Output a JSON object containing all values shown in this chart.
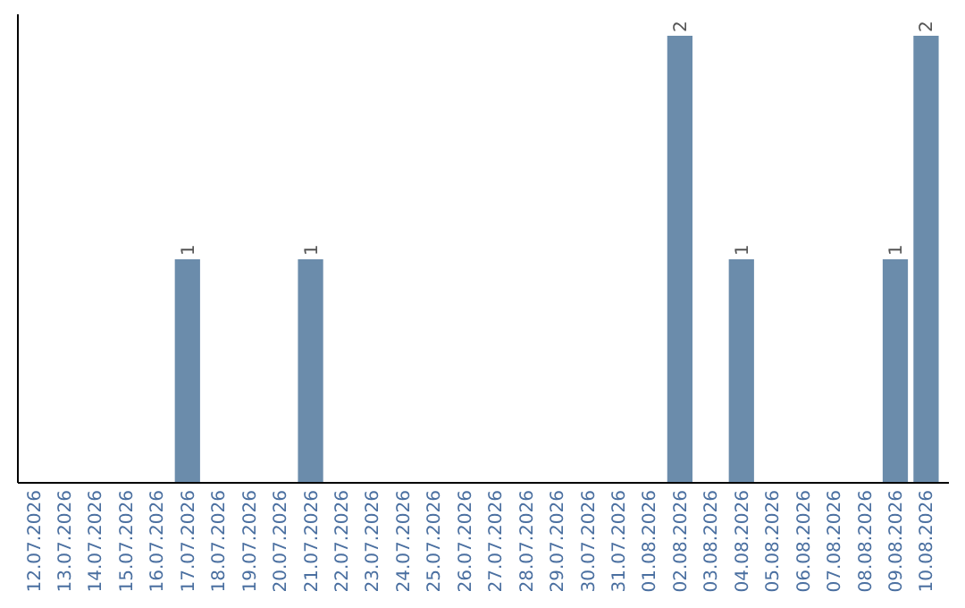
{
  "chart_data": {
    "type": "bar",
    "categories": [
      "12.07.2026",
      "13.07.2026",
      "14.07.2026",
      "15.07.2026",
      "16.07.2026",
      "17.07.2026",
      "18.07.2026",
      "19.07.2026",
      "20.07.2026",
      "21.07.2026",
      "22.07.2026",
      "23.07.2026",
      "24.07.2026",
      "25.07.2026",
      "26.07.2026",
      "27.07.2026",
      "28.07.2026",
      "29.07.2026",
      "30.07.2026",
      "31.07.2026",
      "01.08.2026",
      "02.08.2026",
      "03.08.2026",
      "04.08.2026",
      "05.08.2026",
      "06.08.2026",
      "07.08.2026",
      "08.08.2026",
      "09.08.2026",
      "10.08.2026"
    ],
    "values": [
      0,
      0,
      0,
      0,
      0,
      1,
      0,
      0,
      0,
      1,
      0,
      0,
      0,
      0,
      0,
      0,
      0,
      0,
      0,
      0,
      0,
      2,
      0,
      1,
      0,
      0,
      0,
      0,
      1,
      2
    ],
    "value_labels": [
      null,
      null,
      null,
      null,
      null,
      "1",
      null,
      null,
      null,
      "1",
      null,
      null,
      null,
      null,
      null,
      null,
      null,
      null,
      null,
      null,
      null,
      "2",
      null,
      "1",
      null,
      null,
      null,
      null,
      "1",
      "2"
    ],
    "color": "#6b8cab"
  }
}
